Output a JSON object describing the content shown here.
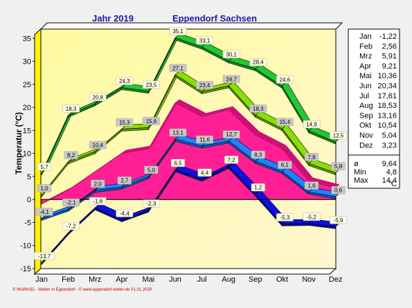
{
  "chart_data": {
    "type": "line",
    "title_left": "Jahr  2019",
    "title_right": "Eppendorf Sachsen",
    "ylabel": "Temperatur  (°C)",
    "ylim": [
      -15,
      37
    ],
    "yticks": [
      35,
      30,
      25,
      20,
      15,
      10,
      5,
      0,
      -5,
      -10,
      -15
    ],
    "categories": [
      "Jan",
      "Feb",
      "Mrz",
      "Apr",
      "Mai",
      "Jun",
      "Jul",
      "Aug",
      "Sep",
      "Okt",
      "Nov",
      "Dez"
    ],
    "series": [
      {
        "role": "abs_max",
        "color": "#22c832",
        "values": [
          5.7,
          18.3,
          20.8,
          24.3,
          23.5,
          35.1,
          33.1,
          30.1,
          28.4,
          24.6,
          14.9,
          12.5
        ]
      },
      {
        "role": "mean_max",
        "color": "#88e000",
        "values": [
          1.0,
          8.2,
          10.4,
          15.3,
          15.6,
          27.1,
          23.4,
          24.7,
          18.3,
          15.4,
          7.8,
          5.8
        ]
      },
      {
        "role": "mean_upper",
        "color": "#ff1493",
        "values": [
          -1.0,
          2.0,
          6.0,
          10.0,
          11.0,
          21.0,
          18.0,
          19.5,
          14.0,
          11.0,
          4.0,
          2.5
        ]
      },
      {
        "role": "mean",
        "color": "#2080ff",
        "values": [
          -4.1,
          -2.1,
          2.0,
          2.7,
          5.0,
          13.1,
          11.6,
          12.7,
          8.3,
          6.1,
          1.6,
          0.6
        ]
      },
      {
        "role": "mean_min",
        "color": "#1010e0",
        "values": [
          -13.7,
          -7.2,
          -1.8,
          -4.4,
          -2.3,
          6.5,
          4.4,
          7.2,
          1.2,
          -5.3,
          -5.2,
          -5.9
        ]
      }
    ],
    "labels": {
      "abs_max": [
        "5,7",
        "18,3",
        "20,8",
        "24,3",
        "23,5",
        "35,1",
        "33,1",
        "30,1",
        "28,4",
        "24,6",
        "14,9",
        "12,5"
      ],
      "mean_max": [
        "1,0",
        "8,2",
        "10,4",
        "15,3",
        "15,6",
        "27,1",
        "23,4",
        "24,7",
        "18,3",
        "15,4",
        "7,8",
        "5,8"
      ],
      "mean": [
        "-4,1",
        "-2,1",
        "2,0",
        "2,7",
        "5,0",
        "13,1",
        "11,6",
        "12,7",
        "8,3",
        "6,1",
        "1,6",
        "0,6"
      ],
      "mean_min": [
        "-13,7",
        "-7,2",
        "-1,8",
        "-4,4",
        "-2,3",
        "6,5",
        "4,4",
        "7,2",
        "1,2",
        "-5,3",
        "-5,2",
        "-5,9"
      ]
    },
    "legend": {
      "months": [
        {
          "m": "Jan",
          "v": "-1,22"
        },
        {
          "m": "Feb",
          "v": "2,56"
        },
        {
          "m": "Mrz",
          "v": "5,91"
        },
        {
          "m": "Apr",
          "v": "9,21"
        },
        {
          "m": "Mai",
          "v": "10,36"
        },
        {
          "m": "Jun",
          "v": "20,34"
        },
        {
          "m": "Jul",
          "v": "17,61"
        },
        {
          "m": "Aug",
          "v": "18,53"
        },
        {
          "m": "Sep",
          "v": "13,16"
        },
        {
          "m": "Okt",
          "v": "10,54"
        },
        {
          "m": "Nov",
          "v": "5,04"
        },
        {
          "m": "Dez",
          "v": "3,23"
        }
      ],
      "stats": [
        {
          "k": "ø",
          "v": "9,64"
        },
        {
          "k": "Min",
          "v": "4,8"
        },
        {
          "k": "Max",
          "v": "14,4"
        }
      ],
      "unit": "°C"
    },
    "footer": "© WsWin32 - Wetter in Eppendorf - © www.eppendorf-wetter.de  01.01.2020",
    "grid": false
  }
}
